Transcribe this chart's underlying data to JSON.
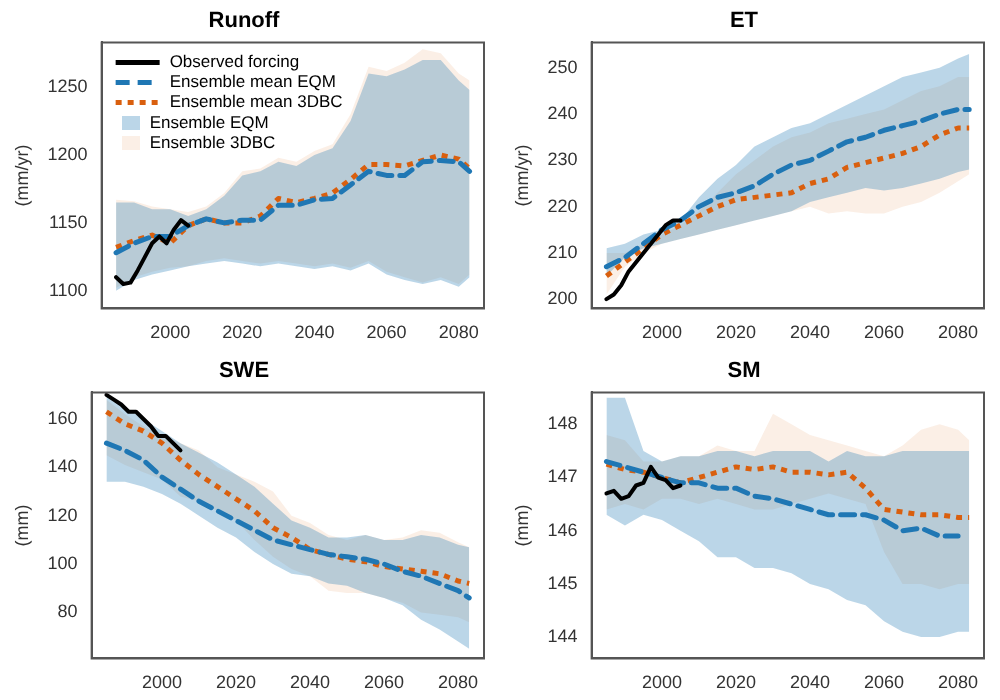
{
  "chart_data": [
    {
      "type": "line",
      "title": "Runoff",
      "ylabel": "(mm/yr)",
      "xlim": [
        1981,
        2087
      ],
      "xticks": [
        2000,
        2020,
        2040,
        2060,
        2080
      ],
      "ylim": [
        1087,
        1283
      ],
      "yticks": [
        1100,
        1150,
        1200,
        1250
      ],
      "grid": false,
      "marker": "none",
      "legend": "top left",
      "annotations": [
        "Ensemble EQM",
        "Ensemble 3DBC"
      ],
      "x": [
        1985,
        1990,
        1995,
        2000,
        2005,
        2010,
        2015,
        2020,
        2025,
        2030,
        2035,
        2040,
        2045,
        2050,
        2055,
        2060,
        2065,
        2070,
        2075,
        2080,
        2083
      ],
      "series": [
        {
          "name": "Observed forcing",
          "color": "#000000",
          "line_style": "solid",
          "x": [
            1985,
            1987,
            1989,
            1991,
            1993,
            1995,
            1997,
            1999,
            2001,
            2003,
            2005
          ],
          "values": [
            1110,
            1105,
            1106,
            1115,
            1125,
            1135,
            1140,
            1135,
            1145,
            1152,
            1148
          ]
        },
        {
          "name": "Ensemble mean EQM",
          "color": "#1f77b4",
          "line_style": "dashed",
          "values": [
            1128,
            1135,
            1140,
            1140,
            1148,
            1153,
            1150,
            1152,
            1152,
            1163,
            1163,
            1167,
            1168,
            1178,
            1188,
            1185,
            1185,
            1195,
            1196,
            1195,
            1188
          ],
          "lower": [
            1100,
            1108,
            1112,
            1115,
            1118,
            1120,
            1122,
            1120,
            1118,
            1120,
            1118,
            1116,
            1118,
            1115,
            1120,
            1112,
            1108,
            1105,
            1108,
            1103,
            1110
          ],
          "upper": [
            1165,
            1165,
            1160,
            1160,
            1155,
            1160,
            1170,
            1185,
            1188,
            1195,
            1192,
            1200,
            1205,
            1225,
            1260,
            1258,
            1263,
            1270,
            1270,
            1255,
            1248
          ]
        },
        {
          "name": "Ensemble mean 3DBC",
          "color": "#d95f0e",
          "line_style": "dotted",
          "values": [
            1132,
            1137,
            1141,
            1135,
            1148,
            1153,
            1150,
            1150,
            1155,
            1168,
            1165,
            1168,
            1172,
            1182,
            1193,
            1193,
            1192,
            1196,
            1200,
            1197,
            1190
          ],
          "lower": [
            1102,
            1110,
            1114,
            1117,
            1118,
            1122,
            1124,
            1122,
            1120,
            1122,
            1120,
            1118,
            1120,
            1117,
            1122,
            1114,
            1110,
            1106,
            1110,
            1105,
            1112
          ],
          "upper": [
            1167,
            1166,
            1162,
            1160,
            1158,
            1162,
            1172,
            1188,
            1190,
            1198,
            1195,
            1203,
            1208,
            1230,
            1265,
            1262,
            1268,
            1278,
            1275,
            1260,
            1255
          ]
        }
      ]
    },
    {
      "type": "line",
      "title": "ET",
      "ylabel": "(mm/yr)",
      "xlim": [
        1981,
        2087
      ],
      "xticks": [
        2000,
        2020,
        2040,
        2060,
        2080
      ],
      "ylim": [
        198,
        255.5
      ],
      "yticks": [
        200,
        210,
        220,
        230,
        240,
        250
      ],
      "grid": false,
      "marker": "none",
      "legend": false,
      "x": [
        1985,
        1990,
        1995,
        2000,
        2005,
        2010,
        2015,
        2020,
        2025,
        2030,
        2035,
        2040,
        2045,
        2050,
        2055,
        2060,
        2065,
        2070,
        2075,
        2080,
        2083
      ],
      "series": [
        {
          "color": "#000000",
          "line_style": "solid",
          "x": [
            1985,
            1987,
            1989,
            1991,
            1993,
            1995,
            1997,
            1999,
            2001,
            2003,
            2005
          ],
          "values": [
            200,
            201,
            203,
            206,
            208,
            210,
            212,
            214,
            216,
            217,
            217
          ]
        },
        {
          "color": "#1f77b4",
          "line_style": "dashed",
          "values": [
            207,
            209,
            212,
            215,
            217,
            220,
            222,
            223,
            224.5,
            227,
            229,
            230,
            232,
            234,
            235,
            236.5,
            237.5,
            238.5,
            240,
            241,
            241
          ],
          "lower": [
            205,
            209,
            211,
            212,
            213,
            214,
            215,
            216,
            217,
            218,
            219,
            221,
            222,
            223,
            224,
            223.5,
            224,
            225,
            226,
            227.5,
            228
          ],
          "upper": [
            211,
            212,
            214,
            215,
            217,
            222,
            226,
            229,
            233,
            235,
            237,
            238,
            240,
            242,
            244,
            246,
            248,
            249,
            250,
            252,
            253
          ]
        },
        {
          "color": "#d95f0e",
          "line_style": "dotted",
          "values": [
            205,
            208,
            211,
            214,
            216,
            218,
            220,
            221.5,
            222,
            222.5,
            223,
            225,
            226,
            228.5,
            229.5,
            230.5,
            231.5,
            233,
            235.5,
            237,
            237
          ],
          "lower": [
            201,
            207,
            210,
            212,
            213,
            214,
            215,
            216,
            217,
            218,
            219,
            220,
            218.5,
            219,
            218.5,
            218.5,
            220,
            221,
            223,
            225.5,
            227
          ],
          "upper": [
            210,
            210,
            212,
            214,
            216,
            219,
            223,
            227,
            230,
            233,
            235,
            236,
            238,
            239,
            240,
            241,
            243,
            245,
            246,
            248,
            248
          ]
        }
      ]
    },
    {
      "type": "line",
      "title": "SWE",
      "ylabel": "(mm)",
      "xlim": [
        1981,
        2087
      ],
      "xticks": [
        2000,
        2020,
        2040,
        2060,
        2080
      ],
      "ylim": [
        61,
        171
      ],
      "yticks": [
        80,
        100,
        120,
        140,
        160
      ],
      "grid": false,
      "marker": "none",
      "legend": false,
      "x": [
        1985,
        1990,
        1995,
        2000,
        2005,
        2010,
        2015,
        2020,
        2025,
        2030,
        2035,
        2040,
        2045,
        2050,
        2055,
        2060,
        2065,
        2070,
        2075,
        2080,
        2083
      ],
      "series": [
        {
          "color": "#000000",
          "line_style": "solid",
          "x": [
            1985,
            1987,
            1989,
            1991,
            1993,
            1995,
            1997,
            1999,
            2001,
            2003,
            2005
          ],
          "values": [
            170,
            168,
            166,
            163,
            163,
            160,
            157,
            153,
            153,
            150,
            147
          ]
        },
        {
          "color": "#1f77b4",
          "line_style": "dashed",
          "values": [
            150,
            147,
            143,
            136,
            131,
            126,
            122,
            118,
            114,
            110,
            108,
            106,
            104,
            103,
            102,
            100,
            97,
            95,
            92,
            89,
            86
          ],
          "lower": [
            134,
            134,
            132,
            129,
            125,
            120,
            115,
            111,
            105,
            100,
            96,
            95,
            92,
            91,
            88,
            86,
            83,
            77,
            73,
            68,
            65
          ],
          "upper": [
            170,
            165,
            160,
            155,
            150,
            146,
            142,
            137,
            132,
            125,
            118,
            115,
            111,
            111,
            112,
            110,
            110,
            112,
            111,
            108,
            107
          ]
        },
        {
          "color": "#d95f0e",
          "line_style": "dotted",
          "values": [
            163,
            158,
            155,
            150,
            143,
            137,
            132,
            127,
            122,
            115,
            111,
            106,
            104,
            102,
            101,
            99,
            98,
            97,
            96,
            93,
            92
          ],
          "lower": [
            145,
            141,
            138,
            135,
            128,
            126,
            122,
            118,
            110,
            103,
            98,
            95,
            89,
            88,
            88,
            86,
            84,
            80,
            79,
            78,
            76
          ],
          "upper": [
            168,
            162,
            157,
            153,
            150,
            147,
            140,
            137,
            134,
            130,
            120,
            117,
            112,
            110,
            112,
            110,
            111,
            114,
            113,
            109,
            107
          ]
        }
      ]
    },
    {
      "type": "line",
      "title": "SM",
      "ylabel": "(mm)",
      "xlim": [
        1981,
        2087
      ],
      "xticks": [
        2000,
        2020,
        2040,
        2060,
        2080
      ],
      "ylim": [
        143.6,
        148.6
      ],
      "yticks": [
        144,
        145,
        146,
        147,
        148
      ],
      "grid": false,
      "marker": "none",
      "legend": false,
      "x": [
        1985,
        1990,
        1995,
        2000,
        2005,
        2010,
        2015,
        2020,
        2025,
        2030,
        2035,
        2040,
        2045,
        2050,
        2055,
        2060,
        2065,
        2070,
        2075,
        2080,
        2083
      ],
      "series": [
        {
          "color": "#000000",
          "line_style": "solid",
          "x": [
            1985,
            1987,
            1989,
            1991,
            1993,
            1995,
            1997,
            1999,
            2001,
            2003,
            2005
          ],
          "values": [
            146.7,
            146.75,
            146.6,
            146.65,
            146.85,
            146.9,
            147.2,
            147.0,
            146.95,
            146.8,
            146.85
          ]
        },
        {
          "color": "#1f77b4",
          "line_style": "dashed",
          "values": [
            147.3,
            147.2,
            147.1,
            147.0,
            146.9,
            146.9,
            146.8,
            146.8,
            146.65,
            146.6,
            146.5,
            146.4,
            146.3,
            146.3,
            146.3,
            146.2,
            146.0,
            146.05,
            145.9,
            145.9,
            null
          ],
          "lower": [
            146.3,
            146.1,
            146.3,
            146.2,
            146.0,
            145.8,
            145.5,
            145.5,
            145.3,
            145.3,
            145.2,
            145.0,
            144.9,
            144.7,
            144.6,
            144.3,
            144.1,
            144.0,
            144.0,
            144.1,
            144.1
          ],
          "upper": [
            148.5,
            148.5,
            147.5,
            147.3,
            147.4,
            147.4,
            147.5,
            147.5,
            147.4,
            147.5,
            147.5,
            147.5,
            147.3,
            147.5,
            147.4,
            147.4,
            147.5,
            147.5,
            147.5,
            147.5,
            147.5
          ]
        },
        {
          "color": "#d95f0e",
          "line_style": "dotted",
          "values": [
            147.25,
            147.15,
            147.1,
            147.0,
            146.9,
            147.0,
            147.1,
            147.2,
            147.15,
            147.2,
            147.1,
            147.1,
            147.05,
            147.1,
            146.8,
            146.4,
            146.35,
            146.3,
            146.3,
            146.25,
            146.25
          ],
          "lower": [
            146.4,
            146.5,
            146.4,
            146.6,
            146.6,
            146.5,
            146.6,
            146.5,
            146.4,
            146.4,
            146.5,
            146.6,
            146.7,
            146.6,
            146.5,
            145.6,
            145.0,
            145.0,
            144.9,
            145.0,
            145.0
          ],
          "upper": [
            147.8,
            147.7,
            147.3,
            147.3,
            147.4,
            147.4,
            147.6,
            147.5,
            147.5,
            148.2,
            148.0,
            147.8,
            147.7,
            147.6,
            147.5,
            147.4,
            147.6,
            147.9,
            148.0,
            147.9,
            147.7
          ]
        }
      ]
    }
  ]
}
